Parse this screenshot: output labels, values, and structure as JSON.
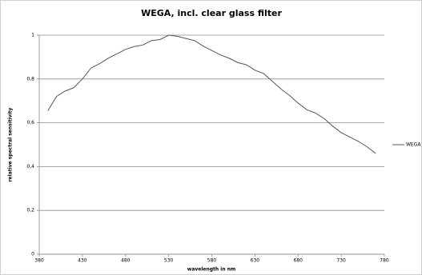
{
  "chart_data": {
    "type": "line",
    "title": "WEGA, incl. clear glass filter",
    "x_label": "wavelength in nm",
    "y_label": "relative spectral sensitivity",
    "x": [
      390,
      400,
      410,
      420,
      430,
      440,
      450,
      460,
      470,
      480,
      490,
      500,
      510,
      520,
      530,
      540,
      550,
      560,
      570,
      580,
      590,
      600,
      610,
      620,
      630,
      640,
      650,
      660,
      670,
      680,
      690,
      700,
      710,
      720,
      730,
      740,
      750,
      760,
      770
    ],
    "series": [
      {
        "name": "WEGA",
        "color": "#555555",
        "values": [
          0.655,
          0.72,
          0.745,
          0.76,
          0.8,
          0.85,
          0.87,
          0.895,
          0.915,
          0.935,
          0.948,
          0.955,
          0.975,
          0.98,
          1.0,
          0.995,
          0.985,
          0.975,
          0.95,
          0.93,
          0.91,
          0.895,
          0.875,
          0.865,
          0.84,
          0.825,
          0.79,
          0.755,
          0.725,
          0.69,
          0.66,
          0.645,
          0.62,
          0.585,
          0.555,
          0.535,
          0.515,
          0.49,
          0.46
        ]
      }
    ],
    "xlim": [
      380,
      780
    ],
    "xticks": [
      380,
      430,
      480,
      530,
      580,
      630,
      680,
      730,
      780
    ],
    "ylim": [
      0,
      1
    ],
    "yticks": [
      0,
      {
        "value": 0.2,
        "label": "0,2"
      },
      {
        "value": 0.4,
        "label": "0,4"
      },
      {
        "value": 0.6,
        "label": "0,6"
      },
      {
        "value": 0.8,
        "label": "0,8"
      },
      1
    ],
    "grid": true,
    "legend": "right"
  }
}
